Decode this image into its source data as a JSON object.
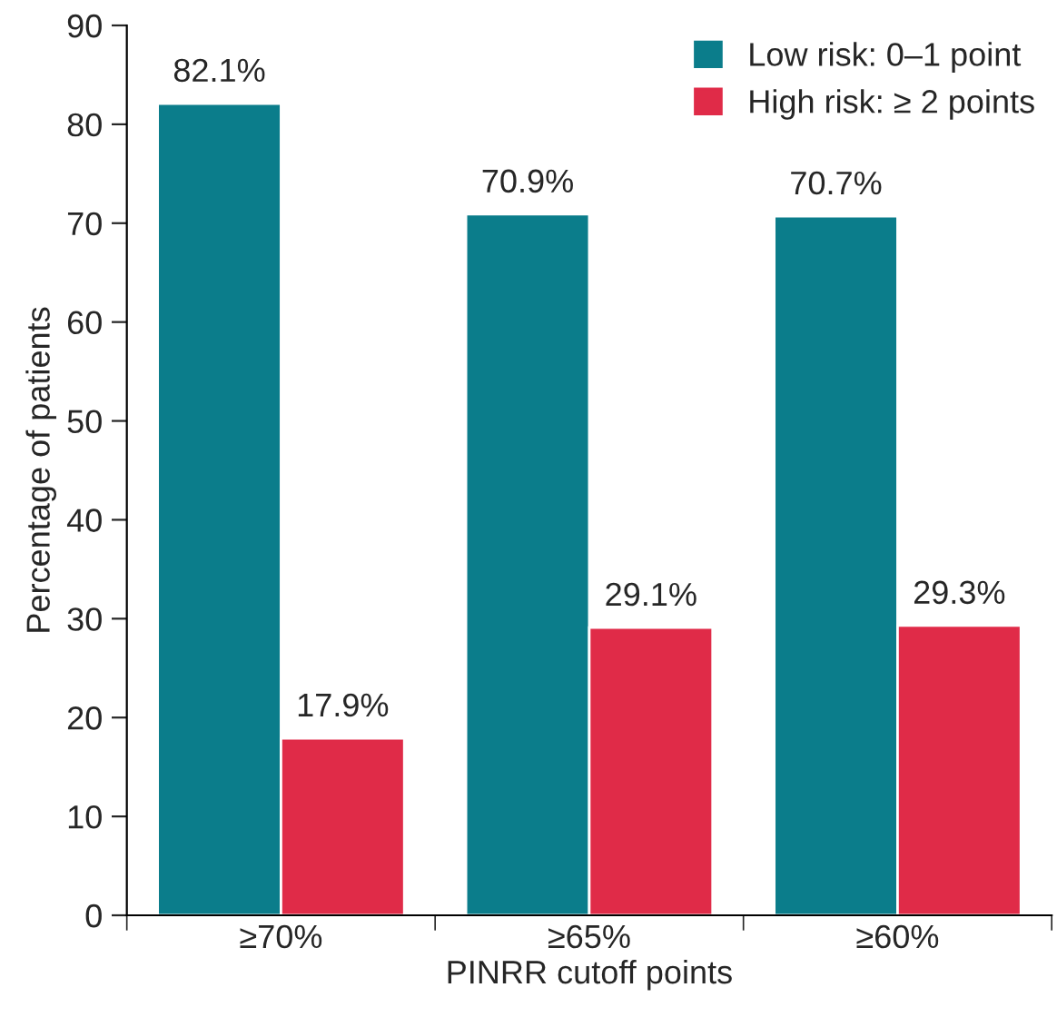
{
  "chart_data": {
    "type": "bar",
    "xlabel": "PINRR cutoff points",
    "ylabel": "Percentage of patients",
    "categories": [
      "≥70%",
      "≥65%",
      "≥60%"
    ],
    "series": [
      {
        "name": "Low risk: 0–1 point",
        "color": "#0b7d8b",
        "values": [
          82.1,
          70.9,
          70.7
        ],
        "value_labels": [
          "82.1%",
          "70.9%",
          "70.7%"
        ]
      },
      {
        "name": "High risk: ≥ 2 points",
        "color": "#e02b48",
        "values": [
          17.9,
          29.1,
          29.3
        ],
        "value_labels": [
          "17.9%",
          "29.1%",
          "29.3%"
        ]
      }
    ],
    "ylim": [
      0,
      90
    ],
    "yticks": [
      0,
      10,
      20,
      30,
      40,
      50,
      60,
      70,
      80,
      90
    ],
    "grid": false,
    "legend": "top right"
  }
}
